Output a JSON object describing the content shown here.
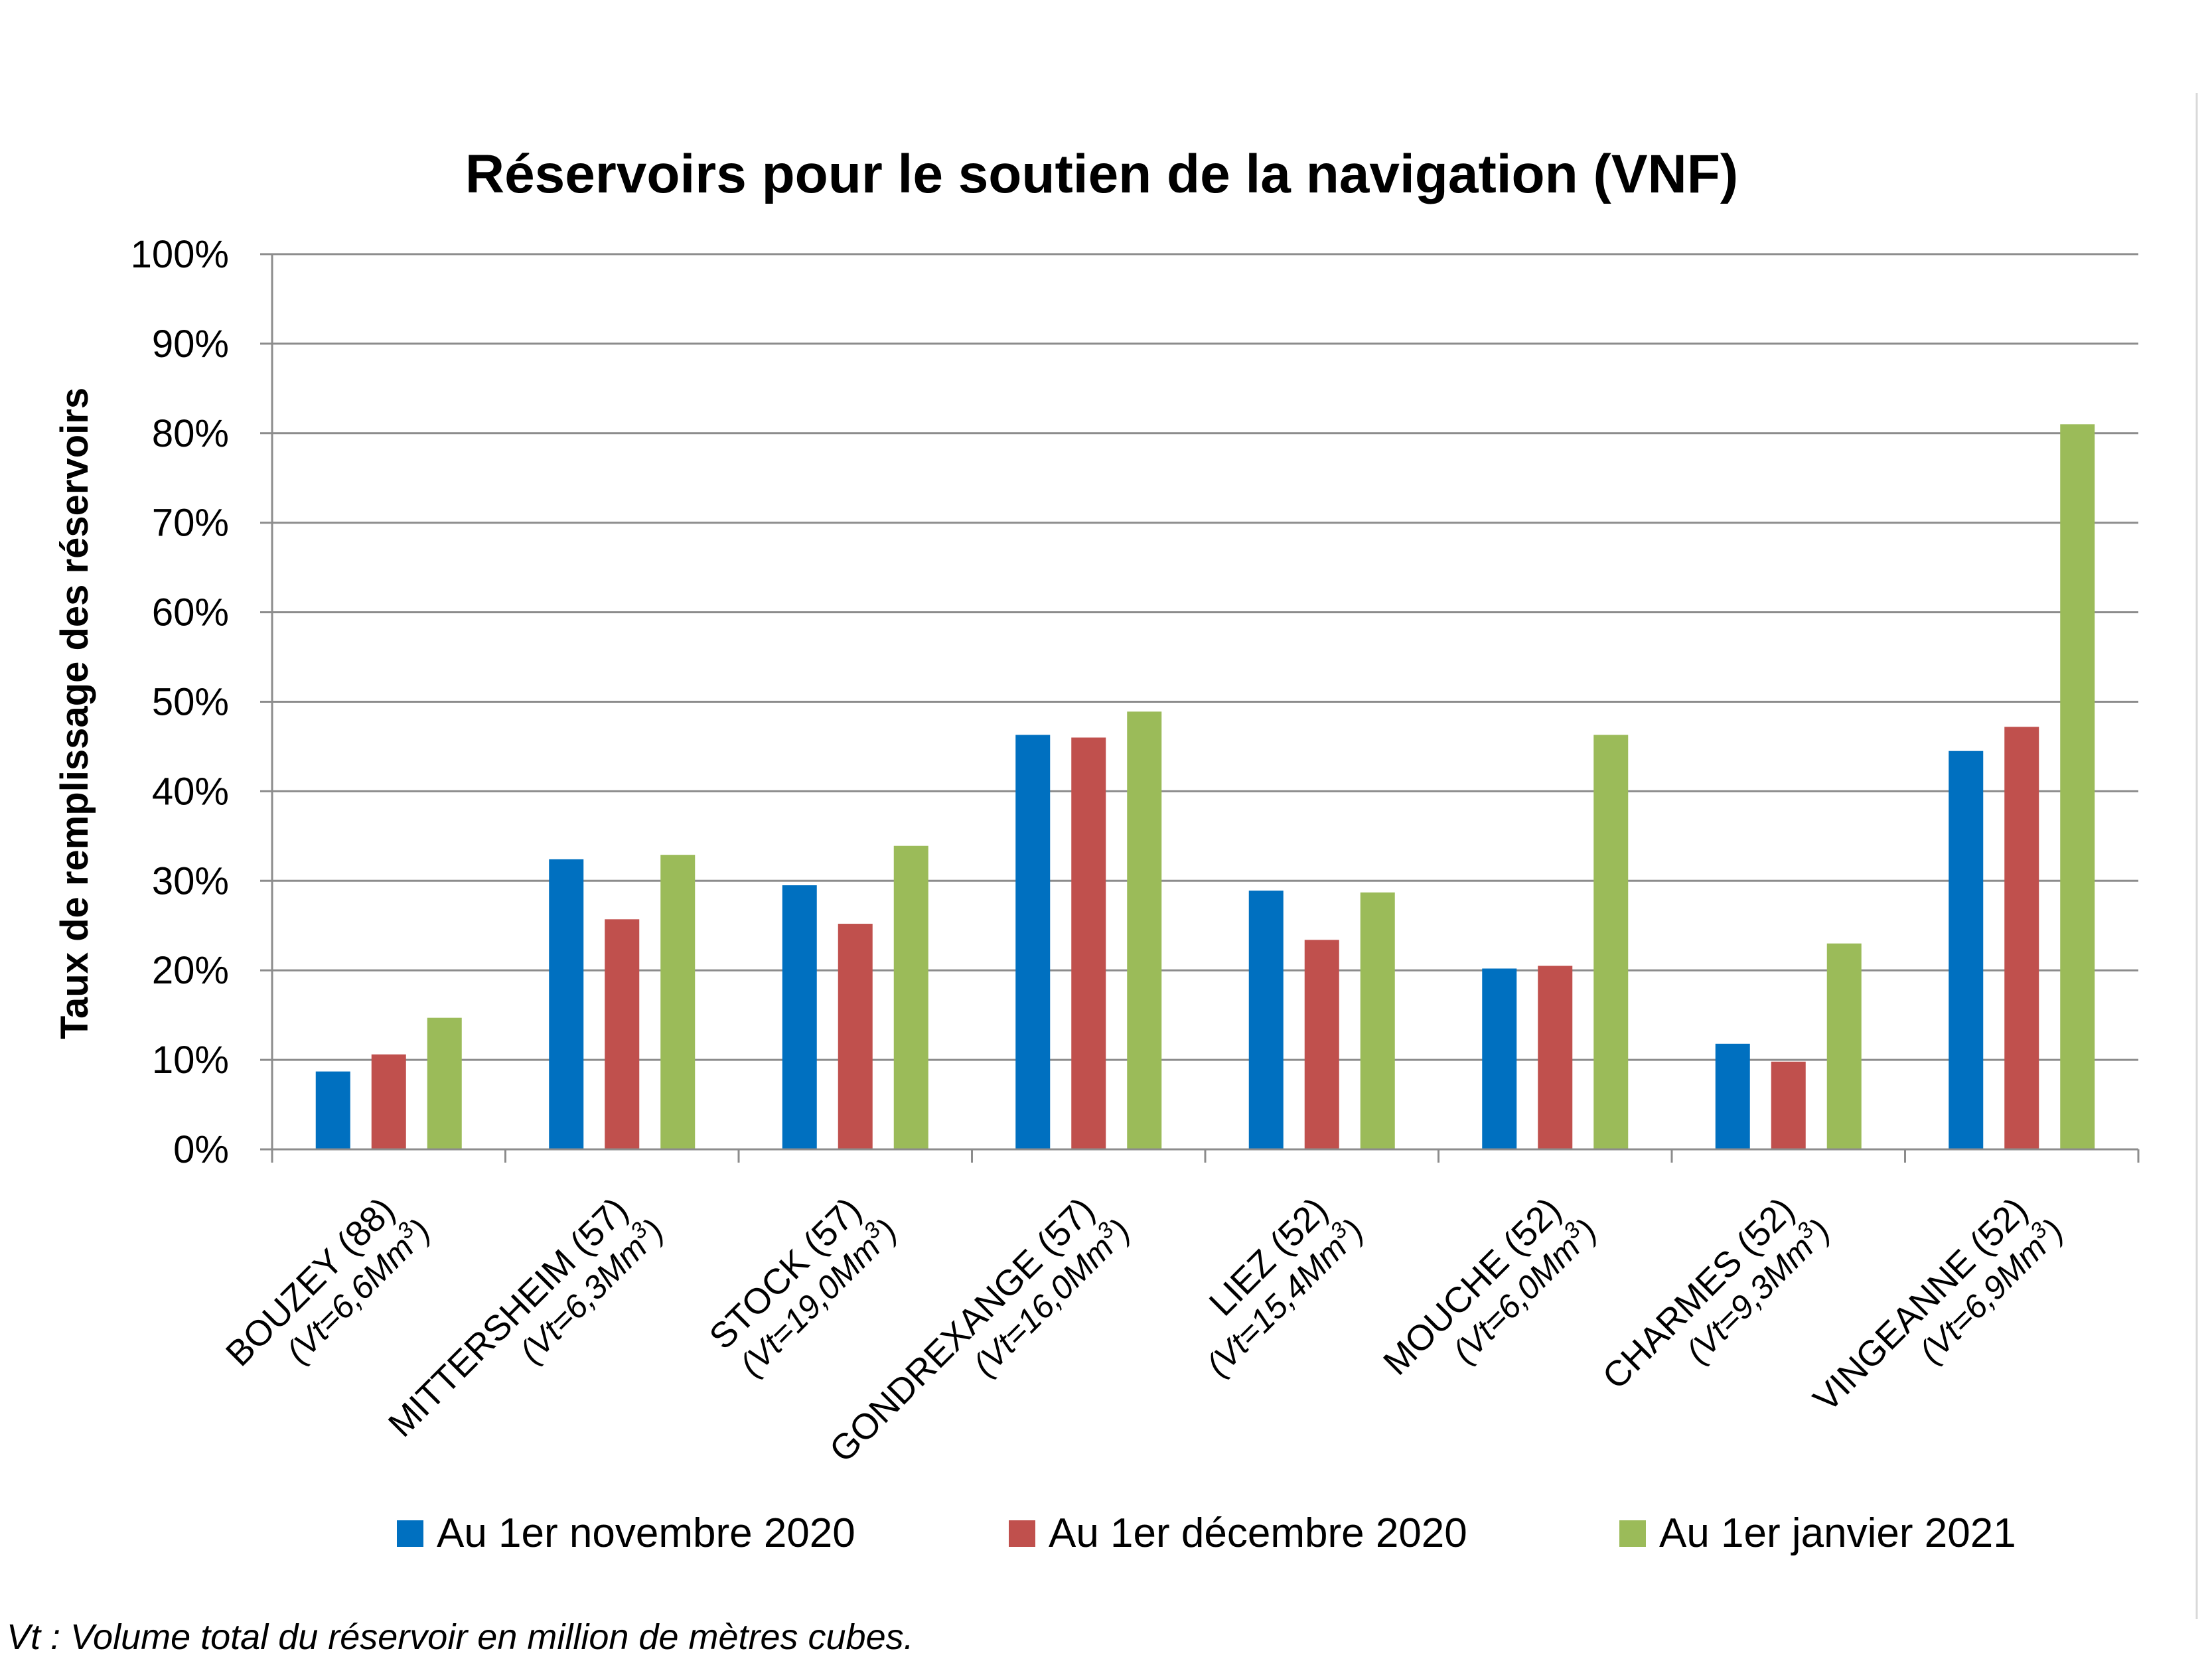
{
  "chart_data": {
    "type": "bar",
    "title": "Réservoirs pour le soutien de la navigation (VNF)",
    "ylabel": "Taux de remplissage des réservoirs",
    "xlabel": "",
    "ylim": [
      0,
      100
    ],
    "yticks": [
      "0%",
      "10%",
      "20%",
      "30%",
      "40%",
      "50%",
      "60%",
      "70%",
      "80%",
      "90%",
      "100%"
    ],
    "grid": true,
    "legend_position": "bottom",
    "categories": [
      {
        "name": "BOUZEY (88)",
        "sub": "(Vt=6,6Mm",
        "sup": "3",
        "close": ")"
      },
      {
        "name": "MITTERSHEIM (57)",
        "sub": "(Vt=6,3Mm",
        "sup": "3",
        "close": ")"
      },
      {
        "name": "STOCK (57)",
        "sub": "(Vt=19,0Mm",
        "sup": "3",
        "close": ")"
      },
      {
        "name": "GONDREXANGE (57)",
        "sub": "(Vt=16,0Mm",
        "sup": "3",
        "close": ")"
      },
      {
        "name": "LIEZ (52)",
        "sub": "(Vt=15,4Mm",
        "sup": "3",
        "close": ")"
      },
      {
        "name": "MOUCHE (52)",
        "sub": "(Vt=6,0Mm",
        "sup": "3",
        "close": ")"
      },
      {
        "name": "CHARMES (52)",
        "sub": "(Vt=9,3Mm",
        "sup": "3",
        "close": ")"
      },
      {
        "name": "VINGEANNE (52)",
        "sub": "(Vt=6,9Mm",
        "sup": "3",
        "close": ")"
      }
    ],
    "series": [
      {
        "name": "Au 1er novembre 2020",
        "color": "#0070C0",
        "values": [
          8.7,
          32.4,
          29.5,
          46.3,
          28.9,
          20.2,
          11.8,
          44.5
        ]
      },
      {
        "name": "Au 1er décembre 2020",
        "color": "#C0504D",
        "values": [
          10.6,
          25.7,
          25.2,
          46.0,
          23.4,
          20.5,
          9.8,
          47.2
        ]
      },
      {
        "name": "Au 1er janvier 2021",
        "color": "#9BBB59",
        "values": [
          14.7,
          32.9,
          33.9,
          48.9,
          28.7,
          46.3,
          23.0,
          81.0
        ]
      }
    ],
    "footnote": "Vt : Volume total du réservoir en million de mètres cubes."
  }
}
